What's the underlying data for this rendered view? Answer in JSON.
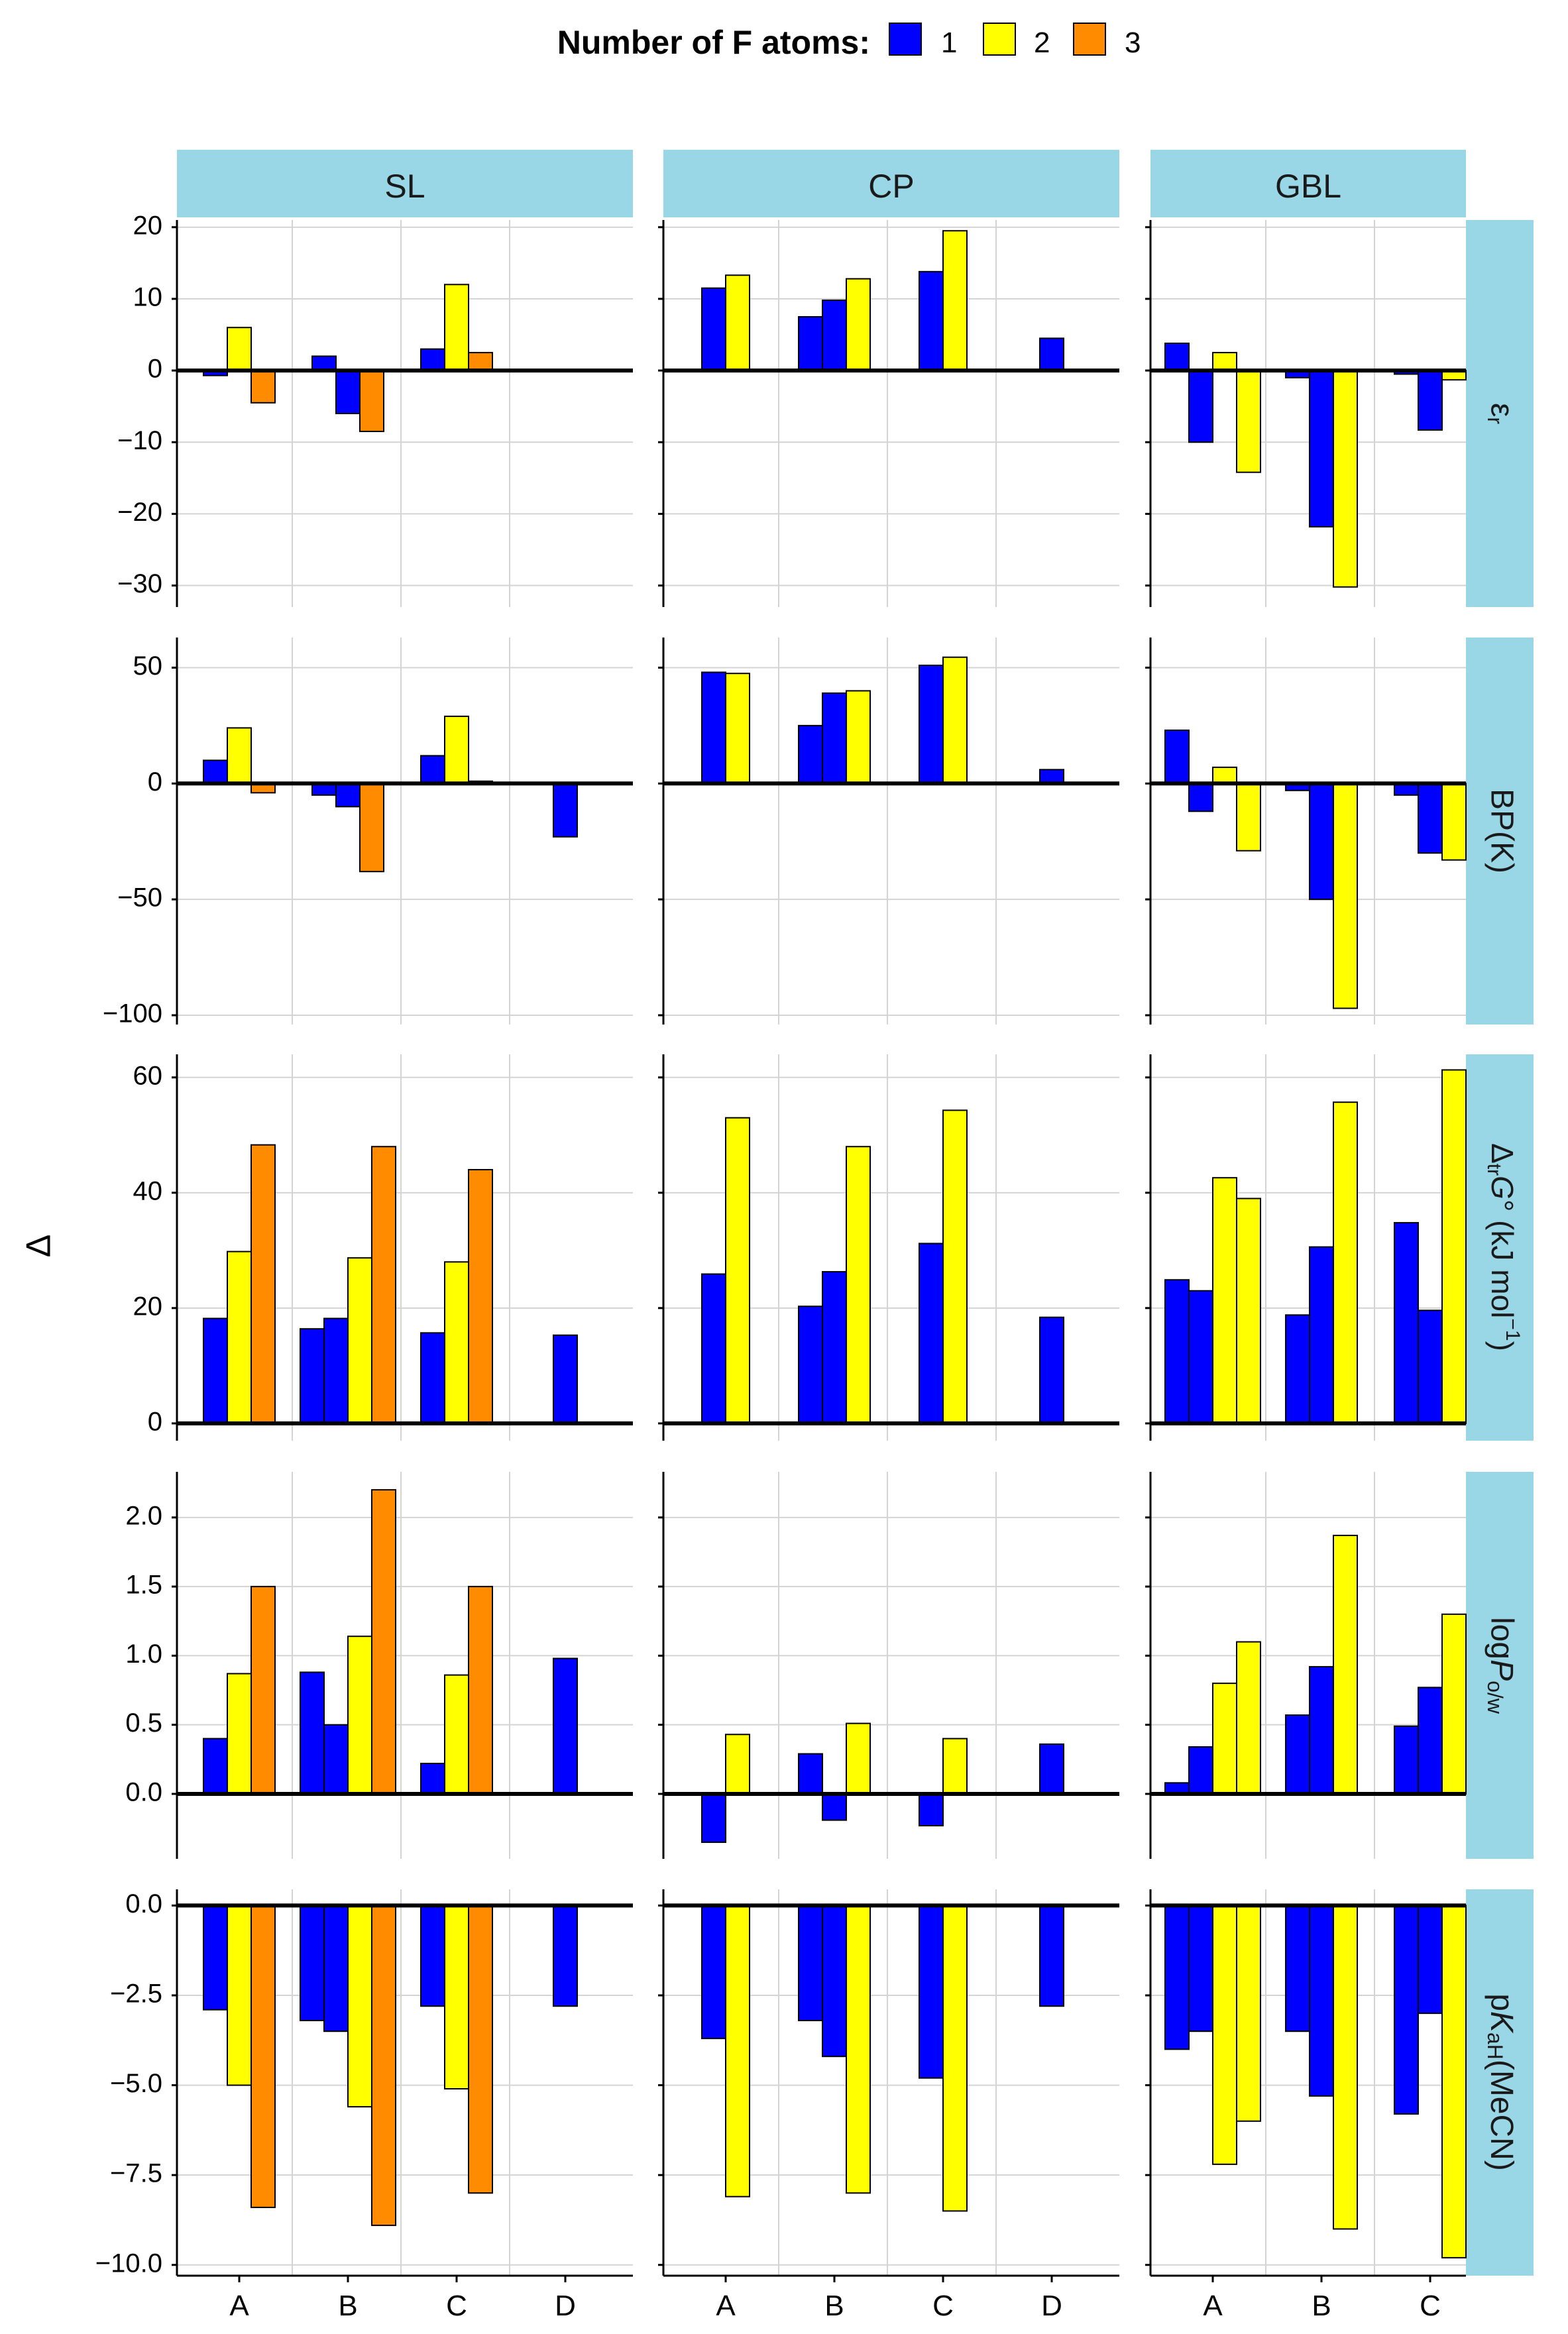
{
  "legend": {
    "title": "Number of F atoms:",
    "items": [
      {
        "label": "1",
        "color": "#0000ff"
      },
      {
        "label": "2",
        "color": "#ffff00"
      },
      {
        "label": "3",
        "color": "#ff8c00"
      }
    ]
  },
  "y_axis_label": "Δ",
  "columns": [
    {
      "name": "SL",
      "categories": [
        "A",
        "B",
        "C",
        "D"
      ]
    },
    {
      "name": "CP",
      "categories": [
        "A",
        "B",
        "C",
        "D"
      ]
    },
    {
      "name": "GBL",
      "categories": [
        "A",
        "B",
        "C"
      ]
    }
  ],
  "rows": [
    {
      "name": "eps",
      "ylim": [
        -33,
        21
      ],
      "ticks": [
        20,
        10,
        0,
        -10,
        -20,
        -30
      ],
      "tick_labels": [
        "20",
        "10",
        "0",
        "−10",
        "−20",
        "−30"
      ]
    },
    {
      "name": "bp",
      "ylim": [
        -104,
        63
      ],
      "ticks": [
        50,
        0,
        -50,
        -100
      ],
      "tick_labels": [
        "50",
        "0",
        "−50",
        "−100"
      ]
    },
    {
      "name": "dg",
      "ylim": [
        -3,
        64
      ],
      "ticks": [
        60,
        40,
        20,
        0
      ],
      "tick_labels": [
        "60",
        "40",
        "20",
        "0"
      ]
    },
    {
      "name": "logp",
      "ylim": [
        -0.47,
        2.33
      ],
      "ticks": [
        2.0,
        1.5,
        1.0,
        0.5,
        0.0
      ],
      "tick_labels": [
        "2.0",
        "1.5",
        "1.0",
        "0.5",
        "0.0"
      ]
    },
    {
      "name": "pka",
      "ylim": [
        -10.3,
        0.45
      ],
      "ticks": [
        0,
        -2.5,
        -5,
        -7.5,
        -10
      ],
      "tick_labels": [
        "0.0",
        "−2.5",
        "−5.0",
        "−7.5",
        "−10.0"
      ]
    }
  ],
  "chart_data": {
    "type": "bar",
    "title": "Number of F atoms: 1, 2, 3",
    "ylabel": "Δ",
    "facet_rows": [
      "ε_r",
      "BP(K)",
      "Δ_tr G° (kJ mol^-1)",
      "log P_o/w",
      "pK_aH(MeCN)"
    ],
    "facet_cols": [
      "SL",
      "CP",
      "GBL"
    ],
    "panels": [
      {
        "row": "ε_r",
        "col": "SL",
        "bars": [
          {
            "cat": "A",
            "f": 1,
            "v": -0.7
          },
          {
            "cat": "A",
            "f": 2,
            "v": 6
          },
          {
            "cat": "A",
            "f": 3,
            "v": -4.5
          },
          {
            "cat": "B",
            "f": 1,
            "v": 2
          },
          {
            "cat": "B",
            "f": 1,
            "v": -6
          },
          {
            "cat": "B",
            "f": 3,
            "v": -8.5
          },
          {
            "cat": "C",
            "f": 1,
            "v": 3
          },
          {
            "cat": "C",
            "f": 2,
            "v": 12
          },
          {
            "cat": "C",
            "f": 3,
            "v": 2.5
          }
        ]
      },
      {
        "row": "ε_r",
        "col": "CP",
        "bars": [
          {
            "cat": "A",
            "f": 1,
            "v": 11.5
          },
          {
            "cat": "A",
            "f": 2,
            "v": 13.3
          },
          {
            "cat": "B",
            "f": 1,
            "v": 7.5
          },
          {
            "cat": "B",
            "f": 1,
            "v": 9.8
          },
          {
            "cat": "B",
            "f": 2,
            "v": 12.8
          },
          {
            "cat": "C",
            "f": 1,
            "v": 13.8
          },
          {
            "cat": "C",
            "f": 2,
            "v": 19.5
          },
          {
            "cat": "D",
            "f": 1,
            "v": 4.5
          }
        ]
      },
      {
        "row": "ε_r",
        "col": "GBL",
        "bars": [
          {
            "cat": "A",
            "f": 1,
            "v": 3.8
          },
          {
            "cat": "A",
            "f": 1,
            "v": -10
          },
          {
            "cat": "A",
            "f": 2,
            "v": 2.5
          },
          {
            "cat": "A",
            "f": 2,
            "v": -14.2
          },
          {
            "cat": "B",
            "f": 1,
            "v": -1
          },
          {
            "cat": "B",
            "f": 1,
            "v": -21.8
          },
          {
            "cat": "B",
            "f": 2,
            "v": -30.2
          },
          {
            "cat": "C",
            "f": 1,
            "v": -0.5
          },
          {
            "cat": "C",
            "f": 1,
            "v": -8.3
          },
          {
            "cat": "C",
            "f": 2,
            "v": -1.3
          }
        ]
      },
      {
        "row": "BP(K)",
        "col": "SL",
        "bars": [
          {
            "cat": "A",
            "f": 1,
            "v": 10
          },
          {
            "cat": "A",
            "f": 2,
            "v": 24
          },
          {
            "cat": "A",
            "f": 3,
            "v": -4
          },
          {
            "cat": "B",
            "f": 1,
            "v": -5
          },
          {
            "cat": "B",
            "f": 1,
            "v": -10
          },
          {
            "cat": "B",
            "f": 3,
            "v": -38
          },
          {
            "cat": "C",
            "f": 1,
            "v": 12
          },
          {
            "cat": "C",
            "f": 2,
            "v": 29
          },
          {
            "cat": "C",
            "f": 3,
            "v": 1
          },
          {
            "cat": "D",
            "f": 1,
            "v": -23
          }
        ]
      },
      {
        "row": "BP(K)",
        "col": "CP",
        "bars": [
          {
            "cat": "A",
            "f": 1,
            "v": 48
          },
          {
            "cat": "A",
            "f": 2,
            "v": 47.5
          },
          {
            "cat": "B",
            "f": 1,
            "v": 25
          },
          {
            "cat": "B",
            "f": 1,
            "v": 39
          },
          {
            "cat": "B",
            "f": 2,
            "v": 40
          },
          {
            "cat": "C",
            "f": 1,
            "v": 51
          },
          {
            "cat": "C",
            "f": 2,
            "v": 54.5
          },
          {
            "cat": "D",
            "f": 1,
            "v": 6
          }
        ]
      },
      {
        "row": "BP(K)",
        "col": "GBL",
        "bars": [
          {
            "cat": "A",
            "f": 1,
            "v": 23
          },
          {
            "cat": "A",
            "f": 1,
            "v": -12
          },
          {
            "cat": "A",
            "f": 2,
            "v": 7
          },
          {
            "cat": "A",
            "f": 2,
            "v": -29
          },
          {
            "cat": "B",
            "f": 1,
            "v": -3
          },
          {
            "cat": "B",
            "f": 1,
            "v": -50
          },
          {
            "cat": "B",
            "f": 2,
            "v": -97
          },
          {
            "cat": "C",
            "f": 1,
            "v": -5
          },
          {
            "cat": "C",
            "f": 1,
            "v": -30
          },
          {
            "cat": "C",
            "f": 2,
            "v": -33
          }
        ]
      },
      {
        "row": "Δ_tr G° (kJ mol^-1)",
        "col": "SL",
        "bars": [
          {
            "cat": "A",
            "f": 1,
            "v": 18.2
          },
          {
            "cat": "A",
            "f": 2,
            "v": 29.8
          },
          {
            "cat": "A",
            "f": 3,
            "v": 48.3
          },
          {
            "cat": "B",
            "f": 1,
            "v": 16.4
          },
          {
            "cat": "B",
            "f": 1,
            "v": 18.2
          },
          {
            "cat": "B",
            "f": 2,
            "v": 28.7
          },
          {
            "cat": "B",
            "f": 3,
            "v": 48
          },
          {
            "cat": "C",
            "f": 1,
            "v": 15.7
          },
          {
            "cat": "C",
            "f": 2,
            "v": 28
          },
          {
            "cat": "C",
            "f": 3,
            "v": 44
          },
          {
            "cat": "D",
            "f": 1,
            "v": 15.3
          }
        ]
      },
      {
        "row": "Δ_tr G° (kJ mol^-1)",
        "col": "CP",
        "bars": [
          {
            "cat": "A",
            "f": 1,
            "v": 25.9
          },
          {
            "cat": "A",
            "f": 2,
            "v": 53
          },
          {
            "cat": "B",
            "f": 1,
            "v": 20.3
          },
          {
            "cat": "B",
            "f": 1,
            "v": 26.3
          },
          {
            "cat": "B",
            "f": 2,
            "v": 48
          },
          {
            "cat": "C",
            "f": 1,
            "v": 31.2
          },
          {
            "cat": "C",
            "f": 2,
            "v": 54.3
          },
          {
            "cat": "D",
            "f": 1,
            "v": 18.4
          }
        ]
      },
      {
        "row": "Δ_tr G° (kJ mol^-1)",
        "col": "GBL",
        "bars": [
          {
            "cat": "A",
            "f": 1,
            "v": 24.9
          },
          {
            "cat": "A",
            "f": 1,
            "v": 23
          },
          {
            "cat": "A",
            "f": 2,
            "v": 42.6
          },
          {
            "cat": "A",
            "f": 2,
            "v": 39
          },
          {
            "cat": "B",
            "f": 1,
            "v": 18.8
          },
          {
            "cat": "B",
            "f": 1,
            "v": 30.6
          },
          {
            "cat": "B",
            "f": 2,
            "v": 55.7
          },
          {
            "cat": "C",
            "f": 1,
            "v": 34.8
          },
          {
            "cat": "C",
            "f": 1,
            "v": 19.6
          },
          {
            "cat": "C",
            "f": 2,
            "v": 61.3
          }
        ]
      },
      {
        "row": "log P_o/w",
        "col": "SL",
        "bars": [
          {
            "cat": "A",
            "f": 1,
            "v": 0.4
          },
          {
            "cat": "A",
            "f": 2,
            "v": 0.87
          },
          {
            "cat": "A",
            "f": 3,
            "v": 1.5
          },
          {
            "cat": "B",
            "f": 1,
            "v": 0.88
          },
          {
            "cat": "B",
            "f": 1,
            "v": 0.5
          },
          {
            "cat": "B",
            "f": 2,
            "v": 1.14
          },
          {
            "cat": "B",
            "f": 3,
            "v": 2.2
          },
          {
            "cat": "C",
            "f": 1,
            "v": 0.22
          },
          {
            "cat": "C",
            "f": 2,
            "v": 0.86
          },
          {
            "cat": "C",
            "f": 3,
            "v": 1.5
          },
          {
            "cat": "D",
            "f": 1,
            "v": 0.98
          }
        ]
      },
      {
        "row": "log P_o/w",
        "col": "CP",
        "bars": [
          {
            "cat": "A",
            "f": 1,
            "v": -0.35
          },
          {
            "cat": "A",
            "f": 2,
            "v": 0.43
          },
          {
            "cat": "B",
            "f": 1,
            "v": 0.29
          },
          {
            "cat": "B",
            "f": 1,
            "v": -0.19
          },
          {
            "cat": "B",
            "f": 2,
            "v": 0.51
          },
          {
            "cat": "C",
            "f": 1,
            "v": -0.23
          },
          {
            "cat": "C",
            "f": 2,
            "v": 0.4
          },
          {
            "cat": "D",
            "f": 1,
            "v": 0.36
          }
        ]
      },
      {
        "row": "log P_o/w",
        "col": "GBL",
        "bars": [
          {
            "cat": "A",
            "f": 1,
            "v": 0.08
          },
          {
            "cat": "A",
            "f": 1,
            "v": 0.34
          },
          {
            "cat": "A",
            "f": 2,
            "v": 0.8
          },
          {
            "cat": "A",
            "f": 2,
            "v": 1.1
          },
          {
            "cat": "B",
            "f": 1,
            "v": 0.57
          },
          {
            "cat": "B",
            "f": 1,
            "v": 0.92
          },
          {
            "cat": "B",
            "f": 2,
            "v": 1.87
          },
          {
            "cat": "C",
            "f": 1,
            "v": 0.49
          },
          {
            "cat": "C",
            "f": 1,
            "v": 0.77
          },
          {
            "cat": "C",
            "f": 2,
            "v": 1.3
          }
        ]
      },
      {
        "row": "pK_aH(MeCN)",
        "col": "SL",
        "bars": [
          {
            "cat": "A",
            "f": 1,
            "v": -2.9
          },
          {
            "cat": "A",
            "f": 2,
            "v": -5
          },
          {
            "cat": "A",
            "f": 3,
            "v": -8.4
          },
          {
            "cat": "B",
            "f": 1,
            "v": -3.2
          },
          {
            "cat": "B",
            "f": 1,
            "v": -3.5
          },
          {
            "cat": "B",
            "f": 2,
            "v": -5.6
          },
          {
            "cat": "B",
            "f": 3,
            "v": -8.9
          },
          {
            "cat": "C",
            "f": 1,
            "v": -2.8
          },
          {
            "cat": "C",
            "f": 2,
            "v": -5.1
          },
          {
            "cat": "C",
            "f": 3,
            "v": -8
          },
          {
            "cat": "D",
            "f": 1,
            "v": -2.8
          }
        ]
      },
      {
        "row": "pK_aH(MeCN)",
        "col": "CP",
        "bars": [
          {
            "cat": "A",
            "f": 1,
            "v": -3.7
          },
          {
            "cat": "A",
            "f": 2,
            "v": -8.1
          },
          {
            "cat": "B",
            "f": 1,
            "v": -3.2
          },
          {
            "cat": "B",
            "f": 1,
            "v": -4.2
          },
          {
            "cat": "B",
            "f": 2,
            "v": -8
          },
          {
            "cat": "C",
            "f": 1,
            "v": -4.8
          },
          {
            "cat": "C",
            "f": 2,
            "v": -8.5
          },
          {
            "cat": "D",
            "f": 1,
            "v": -2.8
          }
        ]
      },
      {
        "row": "pK_aH(MeCN)",
        "col": "GBL",
        "bars": [
          {
            "cat": "A",
            "f": 1,
            "v": -4
          },
          {
            "cat": "A",
            "f": 1,
            "v": -3.5
          },
          {
            "cat": "A",
            "f": 2,
            "v": -7.2
          },
          {
            "cat": "A",
            "f": 2,
            "v": -6
          },
          {
            "cat": "B",
            "f": 1,
            "v": -3.5
          },
          {
            "cat": "B",
            "f": 1,
            "v": -5.3
          },
          {
            "cat": "B",
            "f": 2,
            "v": -9
          },
          {
            "cat": "C",
            "f": 1,
            "v": -5.8
          },
          {
            "cat": "C",
            "f": 1,
            "v": -3
          },
          {
            "cat": "C",
            "f": 2,
            "v": -9.8
          }
        ]
      }
    ]
  }
}
